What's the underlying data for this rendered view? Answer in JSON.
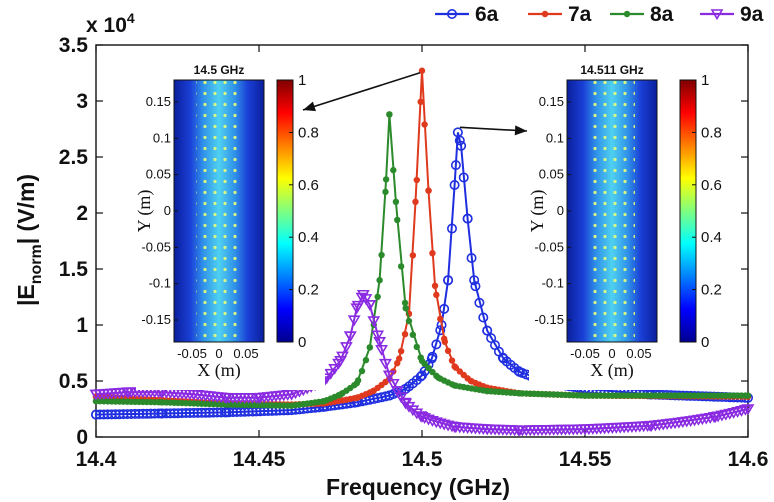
{
  "chart_data": {
    "type": "line",
    "title": "",
    "xlabel": "Frequency (GHz)",
    "ylabel_main": "|E",
    "ylabel_sub": "norm",
    "ylabel_tail": "| (V/m)",
    "y_multiplier_prefix": "x 10",
    "y_multiplier_exp": "4",
    "xlim": [
      14.4,
      14.6
    ],
    "ylim": [
      0,
      35000
    ],
    "xticks": [
      "14.4",
      "14.45",
      "14.5",
      "14.55",
      "14.6"
    ],
    "xtick_values": [
      14.4,
      14.45,
      14.5,
      14.55,
      14.6
    ],
    "yticks": [
      "0",
      "0.5",
      "1",
      "1.5",
      "2",
      "2.5",
      "3",
      "3.5"
    ],
    "ytick_values": [
      0,
      5000,
      10000,
      15000,
      20000,
      25000,
      30000,
      35000
    ],
    "legend_position": "top-right",
    "series": [
      {
        "name": "6a",
        "color": "#1f2fe0",
        "marker": "circle",
        "peak_x": 14.511,
        "peak_y": 27200,
        "x": [
          14.4,
          14.42,
          14.44,
          14.46,
          14.47,
          14.48,
          14.49,
          14.495,
          14.5,
          14.503,
          14.506,
          14.508,
          14.51,
          14.511,
          14.512,
          14.514,
          14.516,
          14.52,
          14.525,
          14.53,
          14.54,
          14.55,
          14.57,
          14.6
        ],
        "y": [
          2000,
          2100,
          2200,
          2400,
          2700,
          3100,
          3700,
          4300,
          5500,
          7000,
          10000,
          14000,
          22500,
          27200,
          26000,
          19500,
          14000,
          9500,
          7000,
          5800,
          4800,
          4300,
          3800,
          3500
        ]
      },
      {
        "name": "7a",
        "color": "#e03a1e",
        "marker": "dot",
        "peak_x": 14.5,
        "peak_y": 32700,
        "x": [
          14.4,
          14.42,
          14.44,
          14.46,
          14.47,
          14.48,
          14.485,
          14.49,
          14.493,
          14.496,
          14.498,
          14.5,
          14.502,
          14.504,
          14.507,
          14.51,
          14.515,
          14.52,
          14.53,
          14.55,
          14.6
        ],
        "y": [
          3600,
          3300,
          3000,
          2900,
          3000,
          3500,
          4100,
          5200,
          7000,
          11000,
          21000,
          32700,
          22000,
          13500,
          8500,
          6300,
          5000,
          4400,
          3900,
          3700,
          3600
        ]
      },
      {
        "name": "8a",
        "color": "#2b8a2b",
        "marker": "dot",
        "peak_x": 14.49,
        "peak_y": 28800,
        "x": [
          14.4,
          14.42,
          14.44,
          14.46,
          14.47,
          14.475,
          14.48,
          14.484,
          14.487,
          14.489,
          14.49,
          14.492,
          14.495,
          14.5,
          14.505,
          14.51,
          14.52,
          14.53,
          14.55,
          14.6
        ],
        "y": [
          3200,
          3100,
          2900,
          2800,
          3200,
          3800,
          4800,
          8000,
          14000,
          23000,
          28800,
          21000,
          11500,
          6800,
          5300,
          4600,
          4100,
          3900,
          3700,
          3700
        ]
      },
      {
        "name": "9a",
        "color": "#8a2be2",
        "marker": "triangle-down",
        "peak_x": 14.482,
        "peak_y": 12700,
        "x": [
          14.4,
          14.41,
          14.42,
          14.43,
          14.44,
          14.45,
          14.46,
          14.47,
          14.475,
          14.478,
          14.48,
          14.482,
          14.484,
          14.487,
          14.49,
          14.495,
          14.5,
          14.51,
          14.52,
          14.53,
          14.55,
          14.57,
          14.59,
          14.6
        ],
        "y": [
          3800,
          4000,
          4000,
          3800,
          3500,
          3500,
          3800,
          5000,
          6800,
          9000,
          11500,
          12700,
          11800,
          8500,
          5500,
          3000,
          1800,
          900,
          700,
          600,
          700,
          1000,
          1800,
          2500
        ]
      }
    ],
    "insets": [
      {
        "title": "14.5 GHz",
        "xlabel": "X (m)",
        "ylabel": "Y (m)",
        "xticks": [
          "-0.05",
          "0",
          "0.05"
        ],
        "yticks": [
          "0.15",
          "0.1",
          "0.05",
          "0",
          "-0.05",
          "-0.1",
          "-0.15"
        ],
        "colorbar_ticks": [
          "1",
          "0.8",
          "0.6",
          "0.4",
          "0.2",
          "0"
        ]
      },
      {
        "title": "14.511 GHz",
        "xlabel": "X (m)",
        "ylabel": "Y (m)",
        "xticks": [
          "-0.05",
          "0",
          "0.05"
        ],
        "yticks": [
          "0.15",
          "0.1",
          "0.05",
          "0",
          "-0.05",
          "-0.1",
          "-0.15"
        ],
        "colorbar_ticks": [
          "1",
          "0.8",
          "0.6",
          "0.4",
          "0.2",
          "0"
        ]
      }
    ]
  }
}
